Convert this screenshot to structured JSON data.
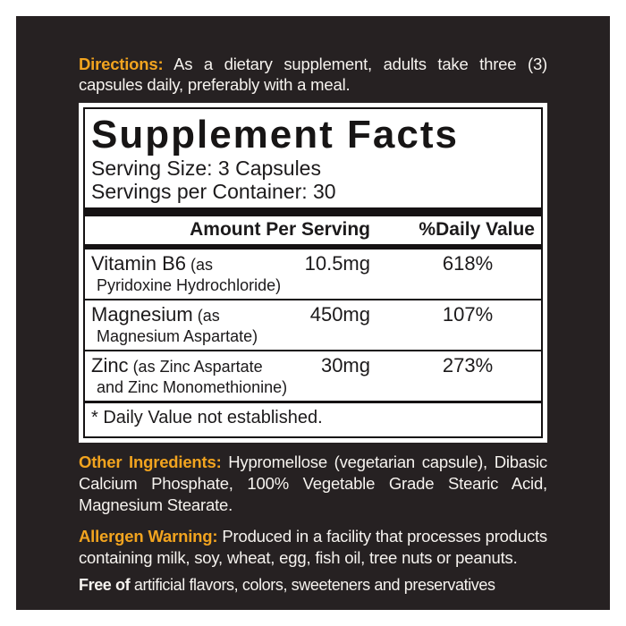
{
  "colors": {
    "page_bg": "#ffffff",
    "panel_bg": "#262122",
    "accent_orange": "#f2a41f",
    "light_text": "#f6f3ef",
    "dark_text": "#1c1a1b"
  },
  "directions": {
    "label": "Directions:",
    "text": "As a dietary supplement, adults take three (3) capsules daily, preferably with a meal."
  },
  "supplement_facts": {
    "title": "Supplement Facts",
    "serving_size": "Serving Size: 3 Capsules",
    "servings_per_container": "Servings per Container: 30",
    "col_amount": "Amount Per Serving",
    "col_dv": "%Daily Value",
    "rows": [
      {
        "name": "Vitamin B6",
        "form_line1": "(as",
        "form_line2": "Pyridoxine Hydrochloride)",
        "amount": "10.5mg",
        "dv": "618%"
      },
      {
        "name": "Magnesium",
        "form_line1": "(as",
        "form_line2": "Magnesium Aspartate)",
        "amount": "450mg",
        "dv": "107%"
      },
      {
        "name": "Zinc",
        "form_line1": "(as Zinc Aspartate",
        "form_line2": "and Zinc Monomethionine)",
        "amount": "30mg",
        "dv": "273%"
      }
    ],
    "footnote": "* Daily Value not established."
  },
  "other_ingredients": {
    "label": "Other Ingredients:",
    "text": "Hypromellose (vegetarian capsule), Dibasic Calcium Phosphate, 100% Vegetable Grade Stearic Acid, Magnesium Stearate."
  },
  "allergen_warning": {
    "label": "Allergen Warning:",
    "text": "Produced in a facility that processes products containing milk, soy, wheat, egg, fish oil, tree nuts or peanuts."
  },
  "free_of": {
    "label": "Free of",
    "text": "artificial flavors, colors, sweeteners and preservatives"
  }
}
